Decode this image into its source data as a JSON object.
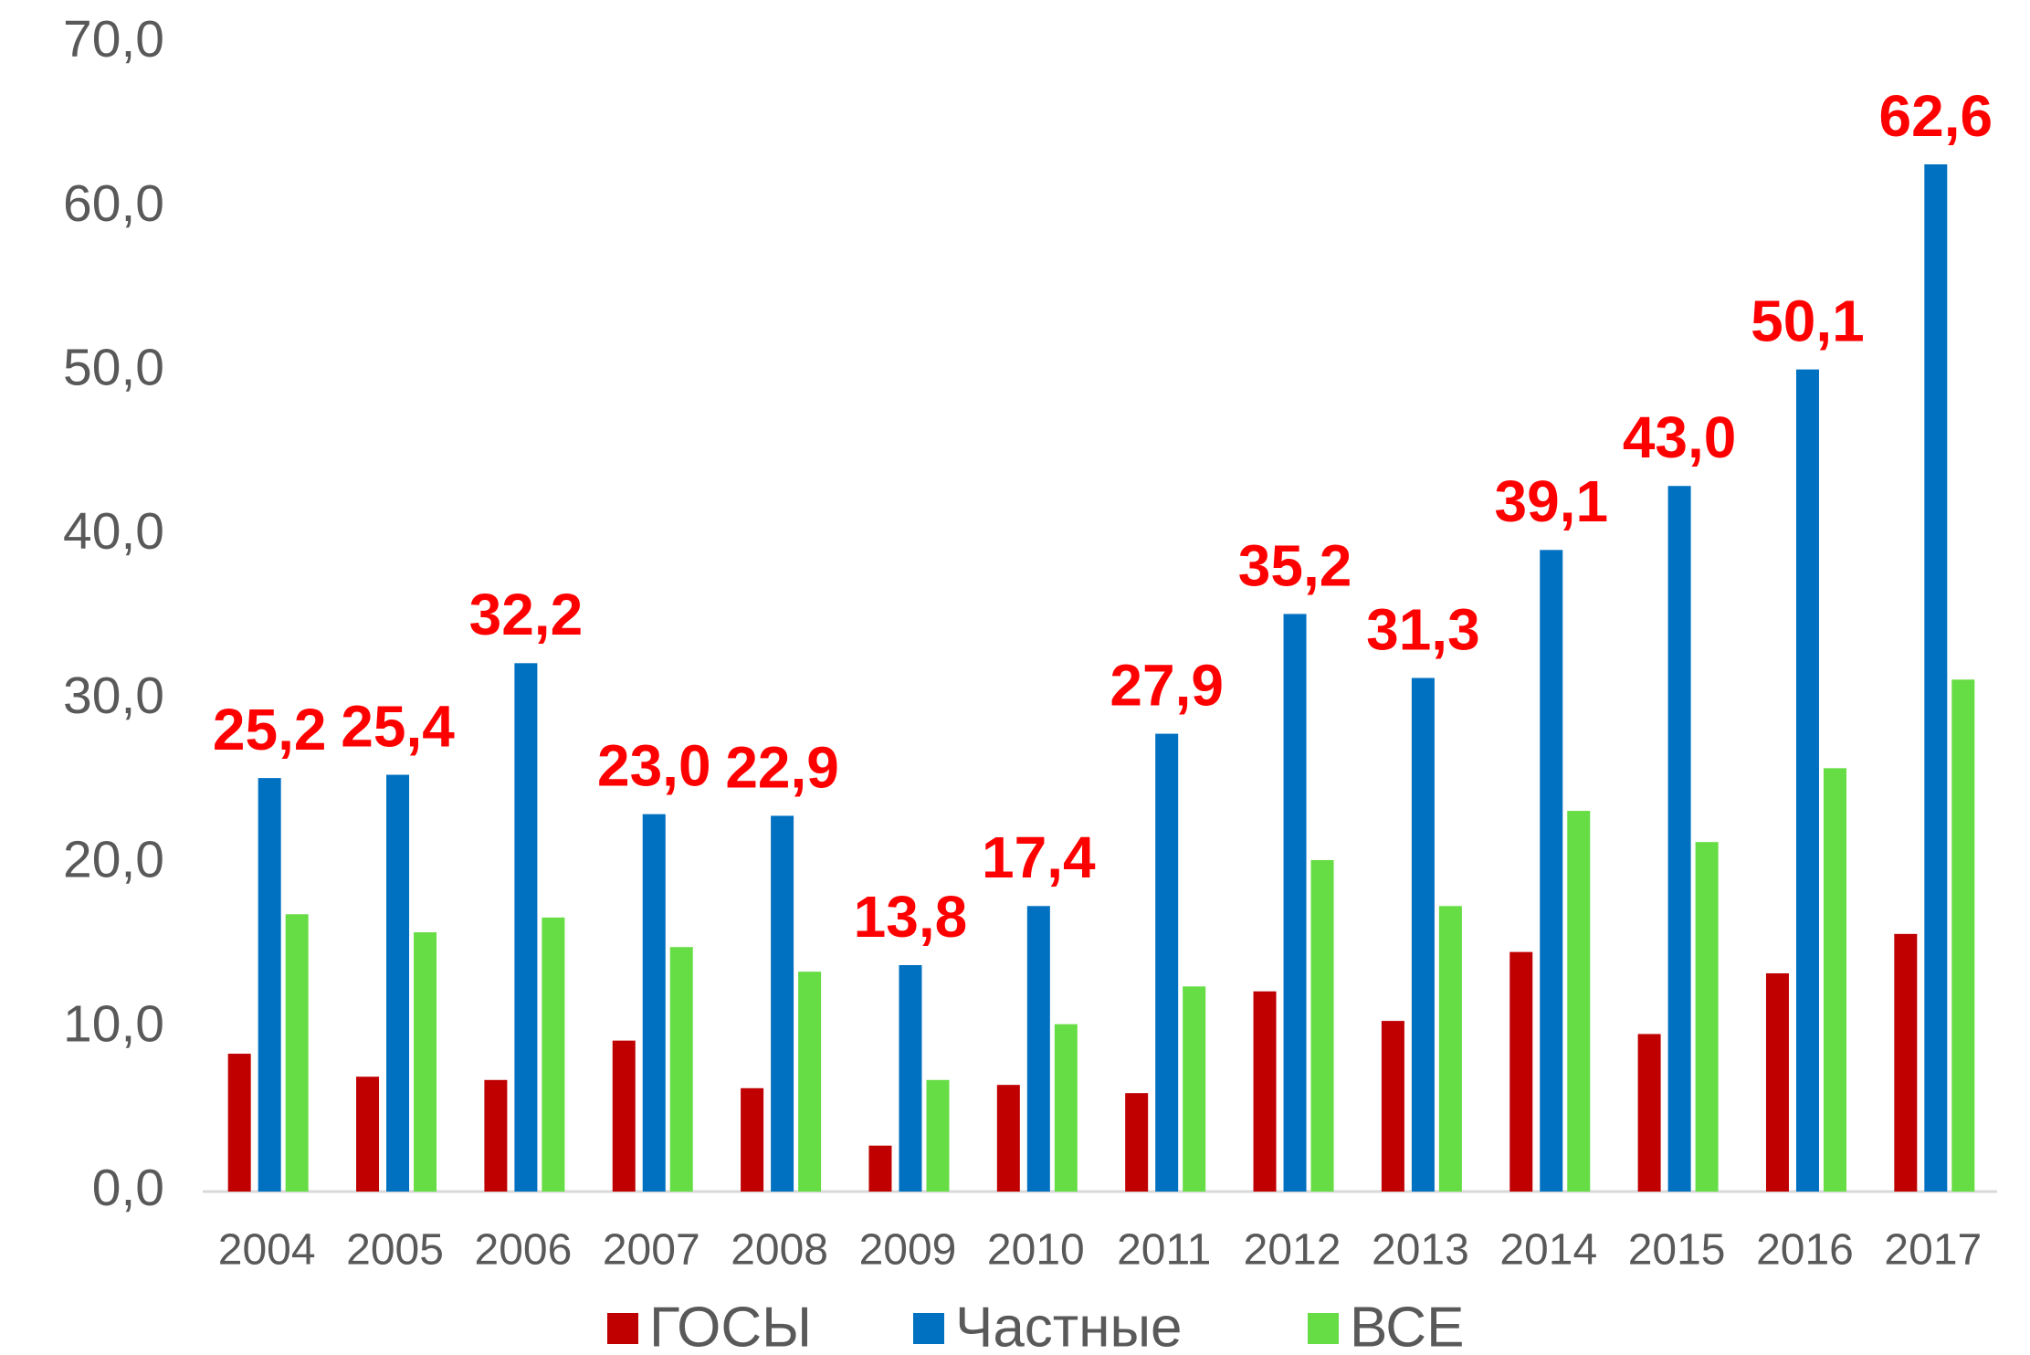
{
  "chart_data": {
    "type": "bar",
    "categories": [
      "2004",
      "2005",
      "2006",
      "2007",
      "2008",
      "2009",
      "2010",
      "2011",
      "2012",
      "2013",
      "2014",
      "2015",
      "2016",
      "2017"
    ],
    "series": [
      {
        "name": "ГОСЫ",
        "color": "#c00000",
        "values": [
          8.4,
          7.0,
          6.8,
          9.2,
          6.3,
          2.8,
          6.5,
          6.0,
          12.2,
          10.4,
          14.6,
          9.6,
          13.3,
          15.7
        ]
      },
      {
        "name": "Частные",
        "color": "#0070c0",
        "values": [
          25.2,
          25.4,
          32.2,
          23.0,
          22.9,
          13.8,
          17.4,
          27.9,
          35.2,
          31.3,
          39.1,
          43.0,
          50.1,
          62.6
        ],
        "value_labels": [
          "25,2",
          "25,4",
          "32,2",
          "23,0",
          "22,9",
          "13,8",
          "17,4",
          "27,9",
          "35,2",
          "31,3",
          "39,1",
          "43,0",
          "50,1",
          "62,6"
        ],
        "label_color": "#ff0000"
      },
      {
        "name": "ВСЕ",
        "color": "#66dd44",
        "values": [
          16.9,
          15.8,
          16.7,
          14.9,
          13.4,
          6.8,
          10.2,
          12.5,
          20.2,
          17.4,
          23.2,
          21.3,
          25.8,
          31.2
        ]
      }
    ],
    "ylim": [
      0,
      70
    ],
    "yticks": [
      {
        "value": 0,
        "label": "0,0"
      },
      {
        "value": 10,
        "label": "10,0"
      },
      {
        "value": 20,
        "label": "20,0"
      },
      {
        "value": 30,
        "label": "30,0"
      },
      {
        "value": 40,
        "label": "40,0"
      },
      {
        "value": 50,
        "label": "50,0"
      },
      {
        "value": 60,
        "label": "60,0"
      },
      {
        "value": 70,
        "label": "70,0"
      }
    ],
    "legend": "bottom"
  }
}
